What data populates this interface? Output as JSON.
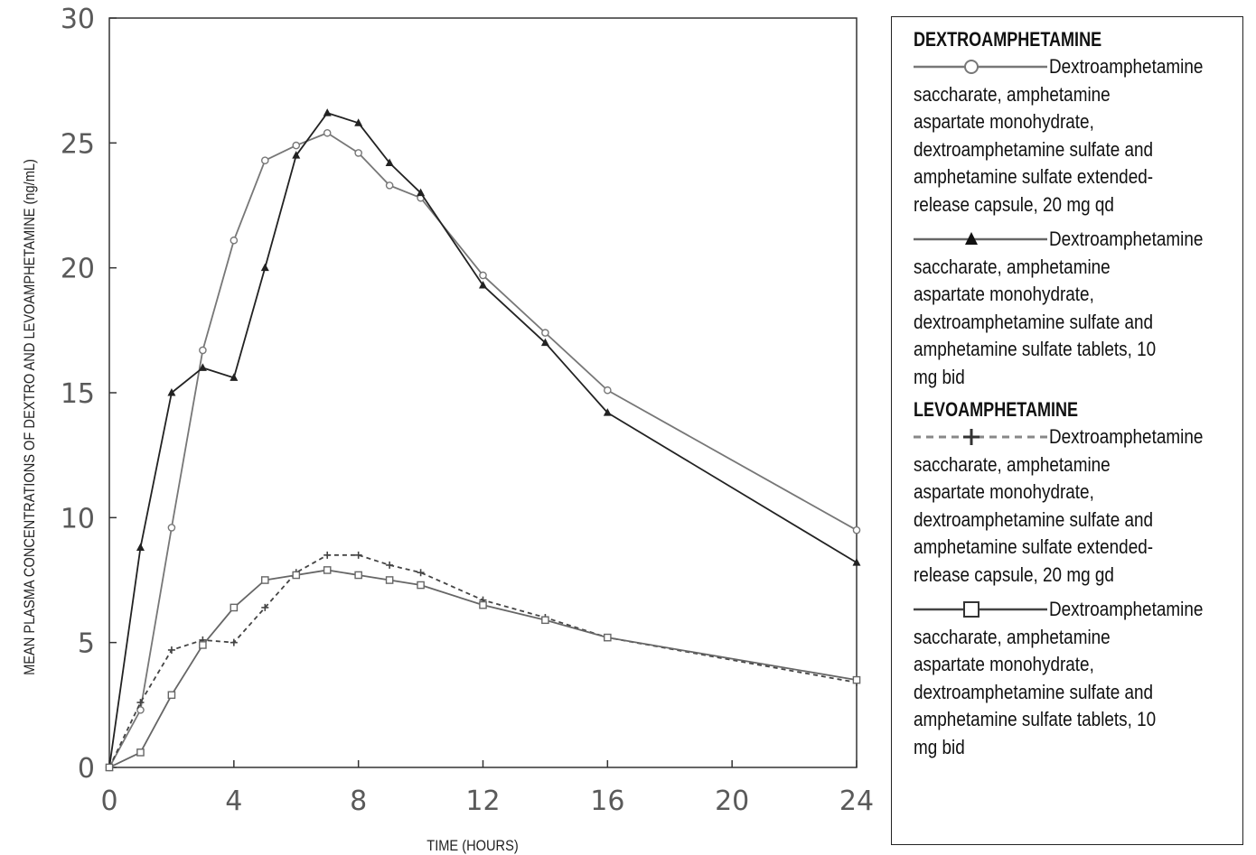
{
  "chart_data": {
    "type": "line",
    "title": "",
    "xlabel": "TIME (HOURS)",
    "ylabel": "MEAN PLASMA CONCENTRATIONS OF DEXTRO AND LEVOAMPHETAMINE (ng/mL)",
    "xlim": [
      0,
      24
    ],
    "ylim": [
      0,
      30
    ],
    "xticks": [
      0,
      4,
      8,
      12,
      16,
      20,
      24
    ],
    "yticks": [
      0,
      5,
      10,
      15,
      20,
      25,
      30
    ],
    "grid": false,
    "legend_position": "right",
    "series": [
      {
        "id": "dex-xr",
        "marker": "open-circle",
        "line": "solid",
        "color": "#777777",
        "x": [
          0,
          1,
          2,
          3,
          4,
          5,
          6,
          7,
          8,
          9,
          10,
          12,
          14,
          16,
          24
        ],
        "y": [
          0,
          2.3,
          9.6,
          16.7,
          21.1,
          24.3,
          24.9,
          25.4,
          24.6,
          23.3,
          22.8,
          19.7,
          17.4,
          15.1,
          9.5
        ]
      },
      {
        "id": "dex-ir",
        "marker": "filled-triangle",
        "line": "solid",
        "color": "#222222",
        "x": [
          0,
          1,
          2,
          3,
          4,
          5,
          6,
          7,
          8,
          9,
          10,
          12,
          14,
          16,
          24
        ],
        "y": [
          0,
          8.8,
          15.0,
          16.0,
          15.6,
          20.0,
          24.5,
          26.2,
          25.8,
          24.2,
          23.0,
          19.3,
          17.0,
          14.2,
          8.2
        ]
      },
      {
        "id": "levo-xr",
        "marker": "plus",
        "line": "dashed",
        "color": "#444444",
        "x": [
          0,
          1,
          2,
          3,
          4,
          5,
          6,
          7,
          8,
          9,
          10,
          12,
          14,
          16,
          24
        ],
        "y": [
          0,
          2.6,
          4.7,
          5.1,
          5.0,
          6.4,
          7.8,
          8.5,
          8.5,
          8.1,
          7.8,
          6.7,
          6.0,
          5.2,
          3.4
        ]
      },
      {
        "id": "levo-ir",
        "marker": "open-square",
        "line": "solid",
        "color": "#666666",
        "x": [
          0,
          1,
          2,
          3,
          4,
          5,
          6,
          7,
          8,
          9,
          10,
          12,
          14,
          16,
          24
        ],
        "y": [
          0,
          0.6,
          2.9,
          4.9,
          6.4,
          7.5,
          7.7,
          7.9,
          7.7,
          7.5,
          7.3,
          6.5,
          5.9,
          5.2,
          3.5
        ]
      }
    ]
  },
  "legend": {
    "heading_dextro": "DEXTROAMPHETAMINE",
    "heading_levo": "LEVOAMPHETAMINE",
    "entries": [
      {
        "series_id": "dex-xr",
        "first": "Dextroamphetamine",
        "rest": "saccharate, amphetamine aspartate monohydrate, dextroamphetamine sulfate and amphetamine sulfate extended-release capsule, 20 mg qd"
      },
      {
        "series_id": "dex-ir",
        "first": "Dextroamphetamine",
        "rest": "saccharate, amphetamine aspartate monohydrate, dextroamphetamine sulfate and amphetamine sulfate tablets, 10 mg bid"
      },
      {
        "series_id": "levo-xr",
        "first": "Dextroamphetamine",
        "rest": "saccharate, amphetamine aspartate monohydrate, dextroamphetamine sulfate and amphetamine sulfate extended-release capsule, 20 mg gd"
      },
      {
        "series_id": "levo-ir",
        "first": "Dextroamphetamine",
        "rest": "saccharate, amphetamine aspartate monohydrate, dextroamphetamine sulfate and amphetamine sulfate tablets, 10 mg bid"
      }
    ]
  }
}
